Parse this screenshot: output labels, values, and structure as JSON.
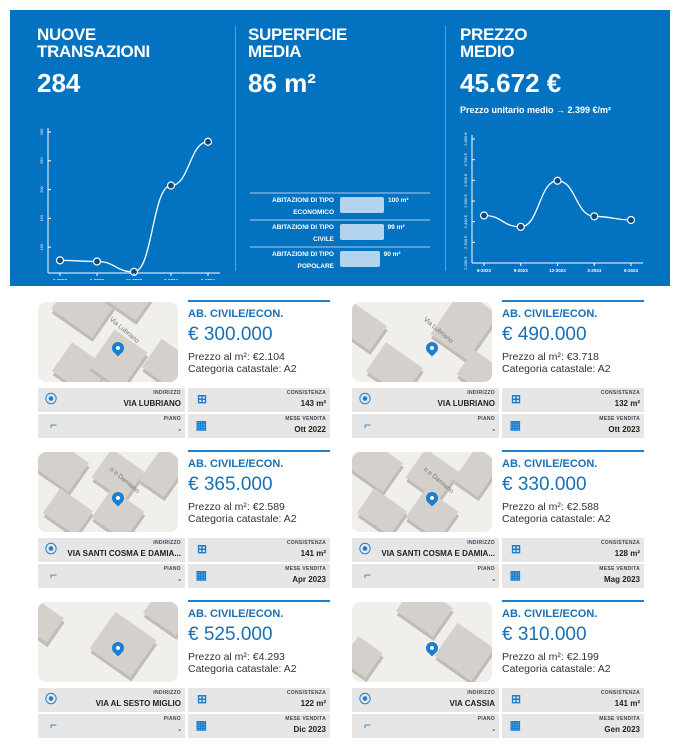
{
  "summary": {
    "transactions": {
      "title_line1": "NUOVE",
      "title_line2": "TRANSAZIONI",
      "value": "284"
    },
    "surface": {
      "title_line1": "SUPERFICIE",
      "title_line2": "MEDIA",
      "value": "86 m²"
    },
    "price": {
      "title_line1": "PREZZO",
      "title_line2": "MEDIO",
      "value": "45.672 €",
      "unit_price_label": "Prezzo unitario medio → 2.399 €/m²"
    }
  },
  "chart_data": [
    {
      "type": "line",
      "x": [
        "6-2023",
        "9-2023",
        "12-2023",
        "3-2024",
        "6-2024"
      ],
      "values": [
        77,
        75,
        57,
        207,
        283
      ],
      "yticks": [
        100,
        150,
        200,
        250,
        300
      ],
      "ylim": [
        55,
        300
      ],
      "grid": false
    },
    {
      "type": "bar",
      "orientation": "horizontal",
      "categories": [
        "ABITAZIONI DI TIPO ECONOMICO",
        "ABITAZIONI DI TIPO CIVILE",
        "ABITAZIONI DI TIPO POPOLARE"
      ],
      "values": [
        100,
        99,
        90
      ],
      "value_labels": [
        "100 m²",
        "99 m²",
        "90 m²"
      ],
      "unit": "m²"
    },
    {
      "type": "line",
      "x": [
        "6-2023",
        "9-2023",
        "12-2023",
        "3-2024",
        "6-2024"
      ],
      "values": [
        2430,
        2375,
        2598,
        2426,
        2408
      ],
      "yticks": [
        "2.200 €",
        "2.300 €",
        "2.400 €",
        "2.500 €",
        "2.600 €",
        "2.700 €",
        "2.800 €"
      ],
      "ylim": [
        2200,
        2800
      ],
      "grid": false
    }
  ],
  "listings": [
    {
      "type": "AB. CIVILE/ECON.",
      "price": "€ 300.000",
      "price_sqm": "Prezzo al m²: €2.104",
      "category": "Categoria catastale: A2",
      "street_label": "Via Lubriano",
      "address_label": "INDIRIZZO",
      "address": "VIA LUBRIANO",
      "size_label": "CONSISTENZA",
      "size": "143 m²",
      "floor_label": "PIANO",
      "floor": "-",
      "month_label": "MESE VENDITA",
      "month": "Ott 2022"
    },
    {
      "type": "AB. CIVILE/ECON.",
      "price": "€ 490.000",
      "price_sqm": "Prezzo al m²: €3.718",
      "category": "Categoria catastale: A2",
      "street_label": "Via Lubriano",
      "address_label": "INDIRIZZO",
      "address": "VIA LUBRIANO",
      "size_label": "CONSISTENZA",
      "size": "132 m²",
      "floor_label": "PIANO",
      "floor": "-",
      "month_label": "MESE VENDITA",
      "month": "Ott 2023"
    },
    {
      "type": "AB. CIVILE/ECON.",
      "price": "€ 365.000",
      "price_sqm": "Prezzo al m²: €2.589",
      "category": "Categoria catastale: A2",
      "street_label": "o e Damiano",
      "address_label": "INDIRIZZO",
      "address": "VIA SANTI COSMA E DAMIA...",
      "size_label": "CONSISTENZA",
      "size": "141 m²",
      "floor_label": "PIANO",
      "floor": "-",
      "month_label": "MESE VENDITA",
      "month": "Apr 2023"
    },
    {
      "type": "AB. CIVILE/ECON.",
      "price": "€ 330.000",
      "price_sqm": "Prezzo al m²: €2.588",
      "category": "Categoria catastale: A2",
      "street_label": "o e Damiano",
      "address_label": "INDIRIZZO",
      "address": "VIA SANTI COSMA E DAMIA...",
      "size_label": "CONSISTENZA",
      "size": "128 m²",
      "floor_label": "PIANO",
      "floor": "-",
      "month_label": "MESE VENDITA",
      "month": "Mag 2023"
    },
    {
      "type": "AB. CIVILE/ECON.",
      "price": "€ 525.000",
      "price_sqm": "Prezzo al m²: €4.293",
      "category": "Categoria catastale: A2",
      "street_label": "",
      "address_label": "INDIRIZZO",
      "address": "VIA AL SESTO MIGLIO",
      "size_label": "CONSISTENZA",
      "size": "122 m²",
      "floor_label": "PIANO",
      "floor": "-",
      "month_label": "MESE VENDITA",
      "month": "Dic 2023"
    },
    {
      "type": "AB. CIVILE/ECON.",
      "price": "€ 310.000",
      "price_sqm": "Prezzo al m²: €2.199",
      "category": "Categoria catastale: A2",
      "street_label": "",
      "address_label": "INDIRIZZO",
      "address": "VIA CASSIA",
      "size_label": "CONSISTENZA",
      "size": "141 m²",
      "floor_label": "PIANO",
      "floor": "-",
      "month_label": "MESE VENDITA",
      "month": "Gen 2023"
    }
  ],
  "colors": {
    "hero": "#0372c1",
    "accent": "#1a7fd0",
    "cell": "#e6e6e6"
  }
}
